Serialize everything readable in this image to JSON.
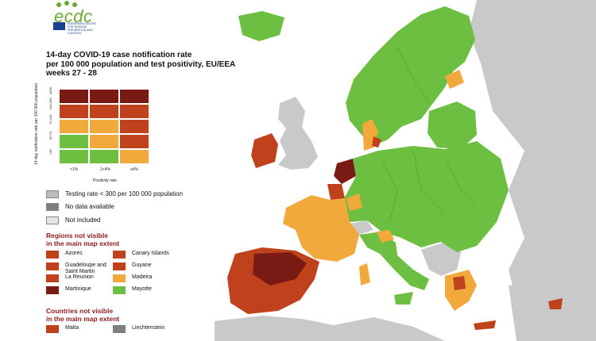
{
  "logo": {
    "wordmark": "ecdc",
    "org_line": "EUROPEAN CENTRE FOR DISEASE PREVENTION AND CONTROL"
  },
  "title": {
    "line1": "14-day COVID-19 case notification rate",
    "line2": "per 100 000 population and test positivity, EU/EEA",
    "line3": "weeks 27 - 28"
  },
  "colors": {
    "green": "#6cbf40",
    "orange": "#f2a93b",
    "red": "#c0421c",
    "dark_red": "#7a1a14",
    "testing_grey": "#bcbcbc",
    "no_data": "#7f7f7f",
    "not_included": "#e6e6e6",
    "sea": "#ffffff",
    "outside": "#c9c9c9"
  },
  "matrix": {
    "ylabel": "14-day notification rate per 100 000 population",
    "xlabel": "Positivity rate",
    "x_ticks": [
      "<1%",
      "1<4%",
      "≥4%"
    ],
    "y_ticks": [
      "≥500",
      "200-499",
      "75-199",
      "50-74",
      "<50"
    ],
    "cells": [
      [
        "dark_red",
        "dark_red",
        "dark_red"
      ],
      [
        "red",
        "red",
        "red"
      ],
      [
        "orange",
        "orange",
        "red"
      ],
      [
        "green",
        "orange",
        "red"
      ],
      [
        "green",
        "green",
        "orange"
      ]
    ]
  },
  "legend": {
    "testing_rate": "Testing rate < 300 per 100 000 population",
    "no_data": "No data available",
    "not_included": "Not included"
  },
  "regions": {
    "heading_line1": "Regions not visible",
    "heading_line2": "in the main map extent",
    "items": [
      {
        "label": "Azores",
        "color": "red"
      },
      {
        "label": "Canary Islands",
        "color": "red"
      },
      {
        "label": "Guadeloupe and Saint Martin",
        "color": "red"
      },
      {
        "label": "Guyane",
        "color": "red"
      },
      {
        "label": "La Reunion",
        "color": "red"
      },
      {
        "label": "Madeira",
        "color": "orange"
      },
      {
        "label": "Martinique",
        "color": "dark_red"
      },
      {
        "label": "Mayotte",
        "color": "green"
      }
    ]
  },
  "countries": {
    "heading_line1": "Countries not visible",
    "heading_line2": "in the main map extent",
    "items": [
      {
        "label": "Malta",
        "color": "red"
      },
      {
        "label": "Liechtenstein",
        "color": "no_data"
      }
    ]
  }
}
